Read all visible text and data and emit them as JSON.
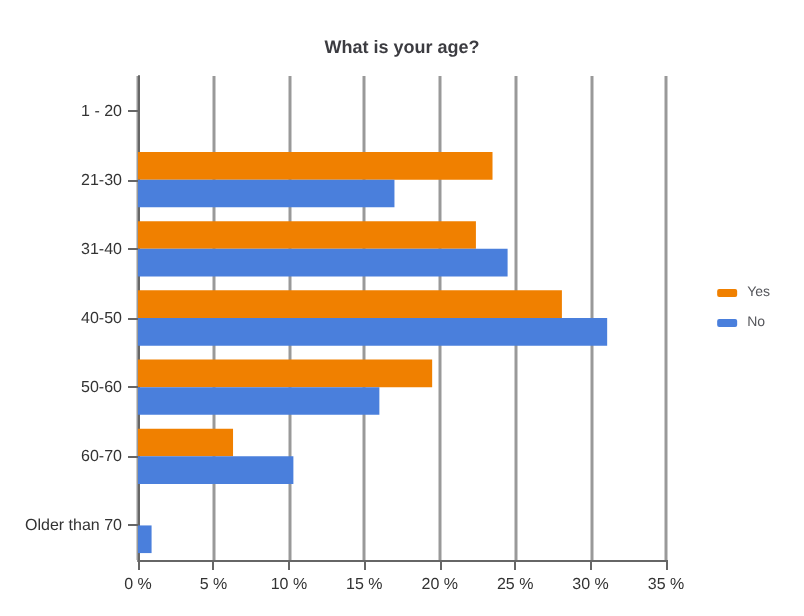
{
  "chart_data": {
    "type": "bar",
    "orientation": "horizontal",
    "title": "What is your age?",
    "categories": [
      "1 - 20",
      "21-30",
      "31-40",
      "40-50",
      "50-60",
      "60-70",
      "Older than 70"
    ],
    "series": [
      {
        "name": "Yes",
        "color": "#f08000",
        "values": [
          0,
          23.5,
          22.4,
          28.1,
          19.5,
          6.3,
          0
        ]
      },
      {
        "name": "No",
        "color": "#4a7fdc",
        "values": [
          0,
          17.0,
          24.5,
          31.1,
          16.0,
          10.3,
          0.9
        ]
      }
    ],
    "xlim": [
      0,
      35
    ],
    "xticks": [
      {
        "value": 0,
        "label": "0 %"
      },
      {
        "value": 5,
        "label": "5 %"
      },
      {
        "value": 10,
        "label": "10 %"
      },
      {
        "value": 15,
        "label": "15 %"
      },
      {
        "value": 20,
        "label": "20 %"
      },
      {
        "value": 25,
        "label": "25 %"
      },
      {
        "value": 30,
        "label": "30 %"
      },
      {
        "value": 35,
        "label": "35 %"
      }
    ],
    "grid": "x",
    "legend": "right"
  }
}
